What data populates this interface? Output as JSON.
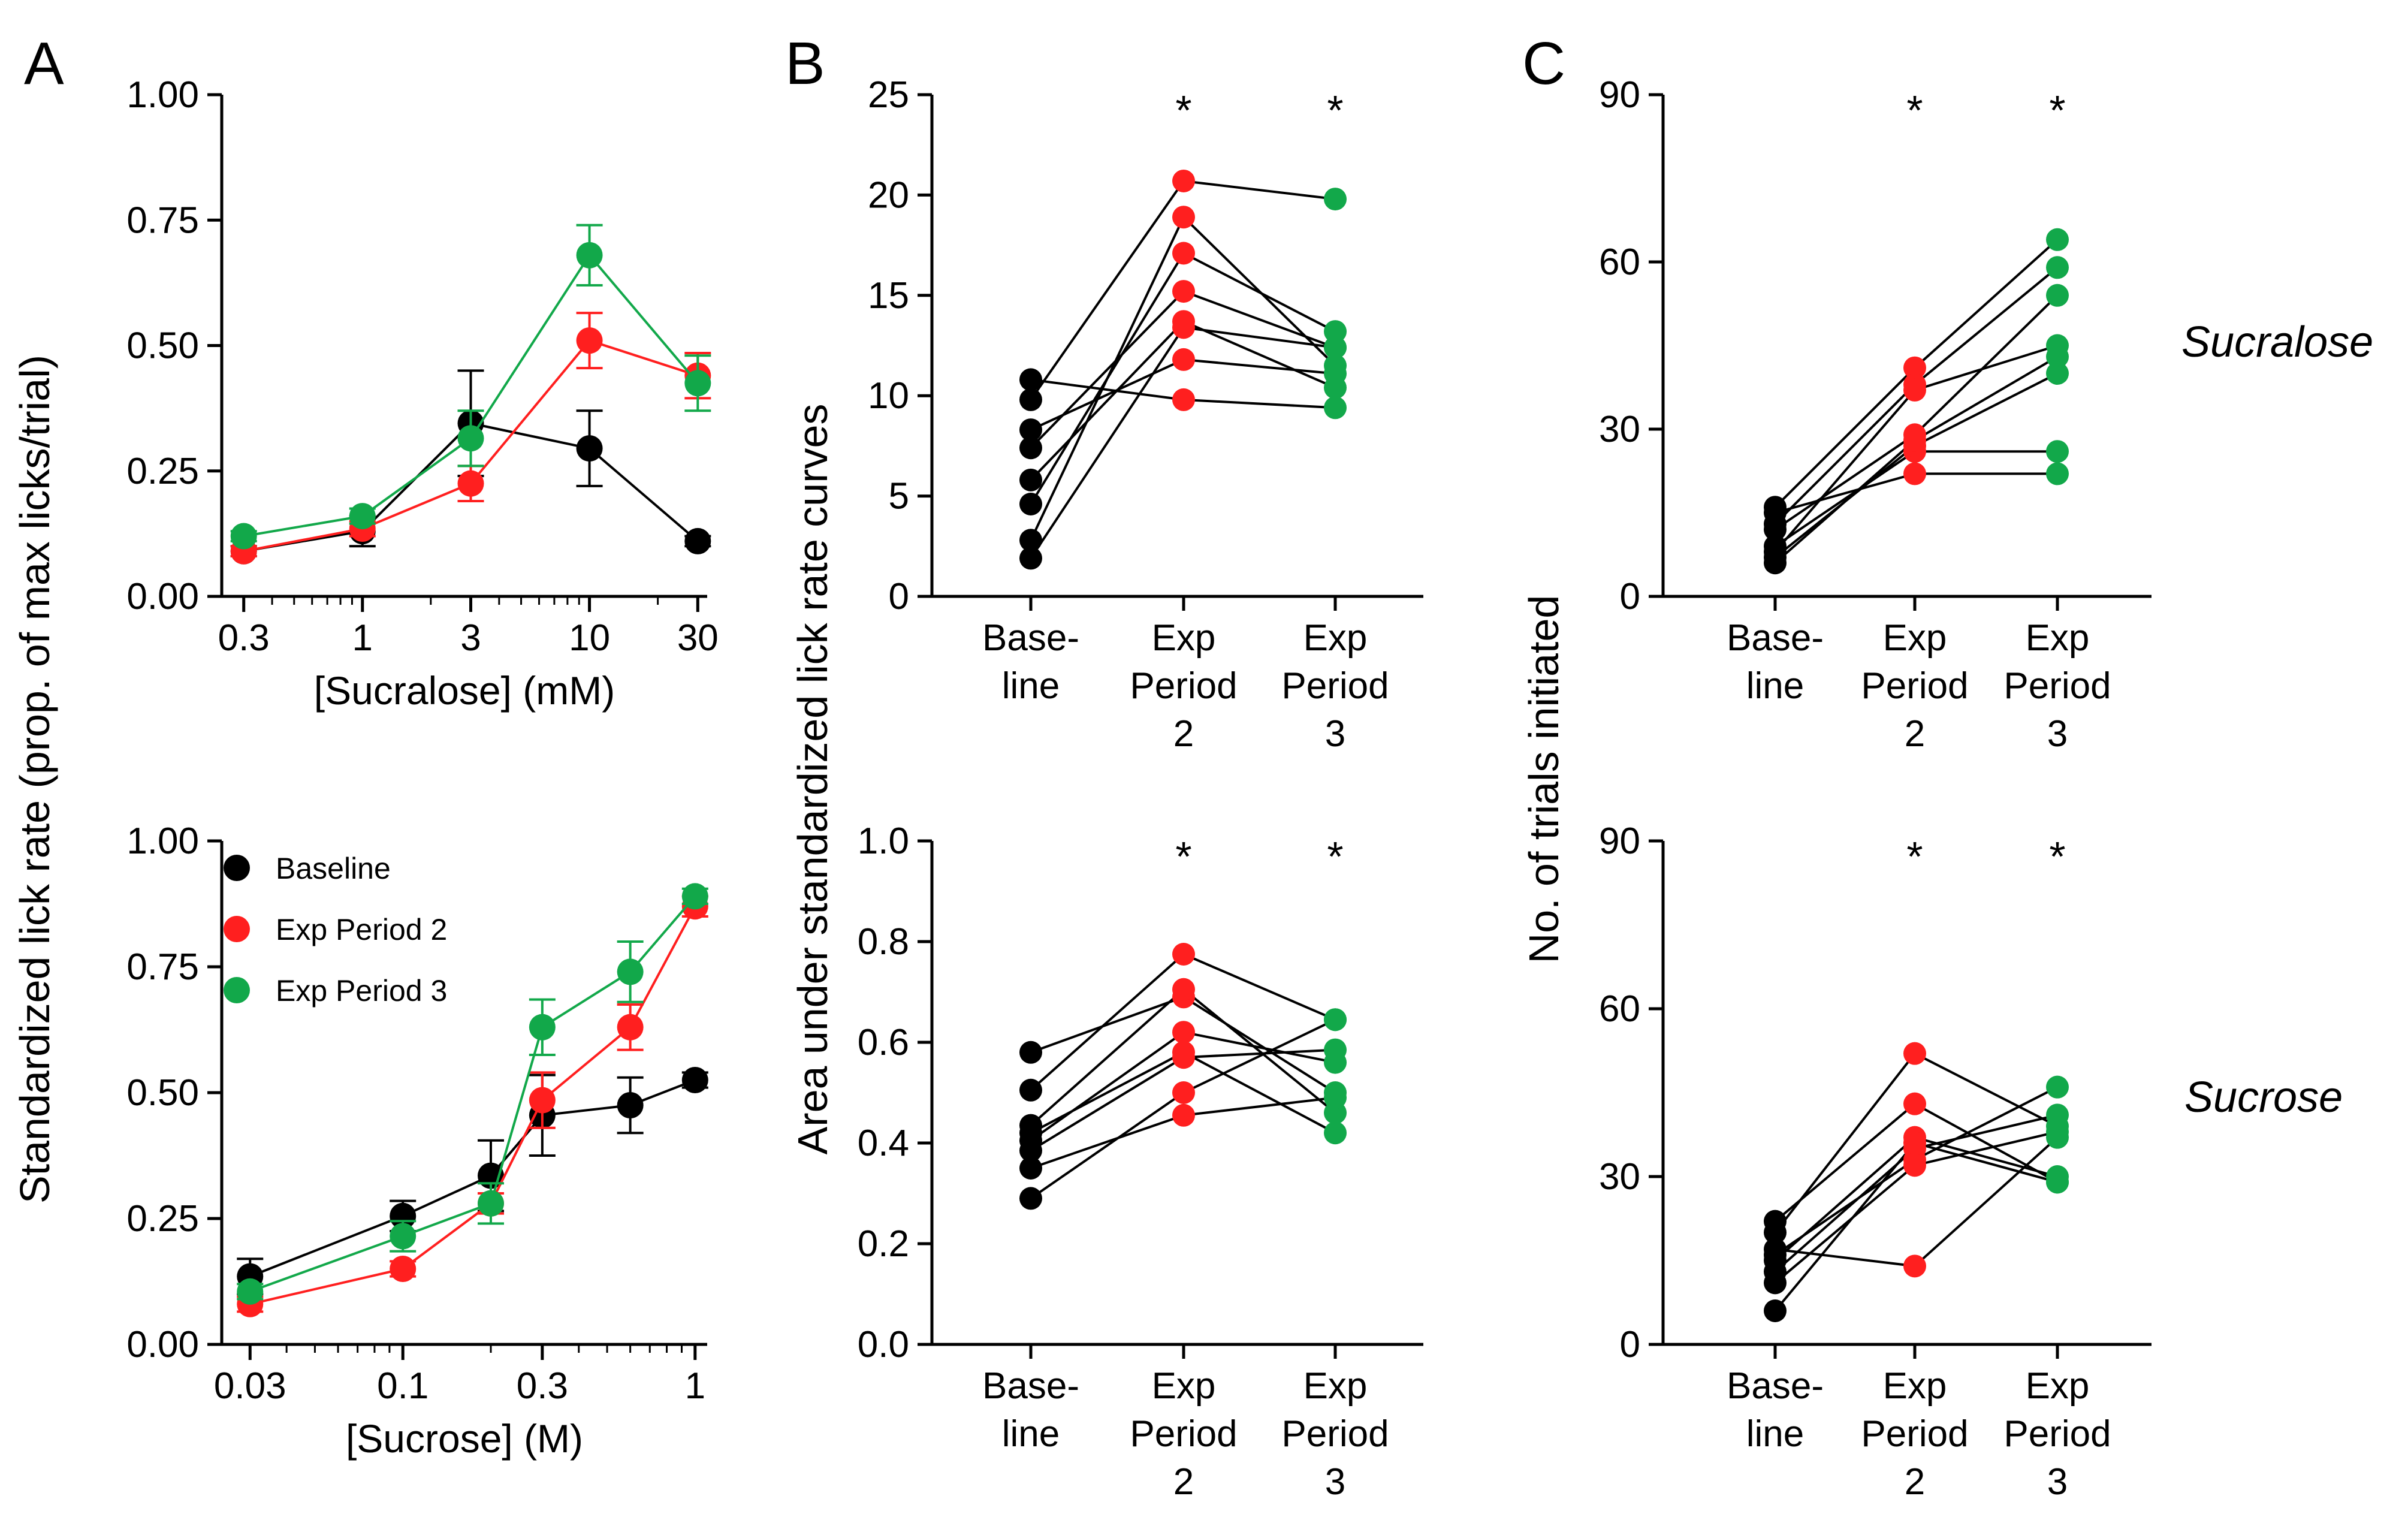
{
  "figure": {
    "panel_letters": [
      "A",
      "B",
      "C"
    ],
    "row_labels": [
      "Sucralose",
      "Sucrose"
    ]
  },
  "colors": {
    "baseline": "#000000",
    "exp2": "#ff1f1f",
    "exp3": "#12a84a"
  },
  "legend": [
    {
      "label": "Baseline",
      "color": "#000000"
    },
    {
      "label": "Exp Period 2",
      "color": "#ff1f1f"
    },
    {
      "label": "Exp Period 3",
      "color": "#12a84a"
    }
  ],
  "chart_data": [
    {
      "id": "A_top",
      "type": "line",
      "xscale": "log",
      "xlabel": "[Sucralose] (mM)",
      "ylabel": "Standardized lick rate (prop. of max licks/trial)",
      "ylim": [
        0,
        1
      ],
      "yticks": [
        0,
        0.25,
        0.5,
        0.75,
        1
      ],
      "ytick_labels": [
        "0.00",
        "0.25",
        "0.50",
        "0.75",
        "1.00"
      ],
      "xlim": [
        0.24,
        33
      ],
      "xticks": [
        0.3,
        1,
        3,
        10,
        30
      ],
      "xtick_labels": [
        "0.3",
        "1",
        "3",
        "10",
        "30"
      ],
      "x": [
        0.3,
        1,
        3,
        10,
        30
      ],
      "series": [
        {
          "name": "Baseline",
          "color": "#000000",
          "values": [
            0.09,
            0.13,
            0.345,
            0.295,
            0.11
          ],
          "err": [
            0.01,
            0.03,
            0.105,
            0.075,
            0.01
          ]
        },
        {
          "name": "Exp Period 2",
          "color": "#ff1f1f",
          "values": [
            0.09,
            0.135,
            0.225,
            0.51,
            0.44
          ],
          "err": [
            0.01,
            0.015,
            0.035,
            0.055,
            0.045
          ]
        },
        {
          "name": "Exp Period 3",
          "color": "#12a84a",
          "values": [
            0.12,
            0.16,
            0.315,
            0.68,
            0.425
          ],
          "err": [
            0.01,
            0.015,
            0.055,
            0.06,
            0.055
          ]
        }
      ]
    },
    {
      "id": "A_bottom",
      "type": "line",
      "xscale": "log",
      "xlabel": "[Sucrose] (M)",
      "ylabel": "",
      "ylim": [
        0,
        1
      ],
      "yticks": [
        0,
        0.25,
        0.5,
        0.75,
        1
      ],
      "ytick_labels": [
        "0.00",
        "0.25",
        "0.50",
        "0.75",
        "1.00"
      ],
      "xlim": [
        0.024,
        1.1
      ],
      "xticks": [
        0.03,
        0.1,
        0.3,
        1
      ],
      "xtick_labels": [
        "0.03",
        "0.1",
        "0.3",
        "1"
      ],
      "x": [
        0.03,
        0.1,
        0.2,
        0.3,
        0.6,
        1.0
      ],
      "series": [
        {
          "name": "Baseline",
          "color": "#000000",
          "values": [
            0.135,
            0.255,
            0.335,
            0.455,
            0.475,
            0.525
          ],
          "err": [
            0.035,
            0.03,
            0.07,
            0.08,
            0.055,
            0.015
          ]
        },
        {
          "name": "Exp Period 2",
          "color": "#ff1f1f",
          "values": [
            0.08,
            0.15,
            0.28,
            0.485,
            0.63,
            0.87
          ],
          "err": [
            0.015,
            0.015,
            0.02,
            0.055,
            0.045,
            0.02
          ]
        },
        {
          "name": "Exp Period 3",
          "color": "#12a84a",
          "values": [
            0.105,
            0.215,
            0.28,
            0.63,
            0.74,
            0.89
          ],
          "err": [
            0.015,
            0.03,
            0.04,
            0.055,
            0.06,
            0.015
          ]
        }
      ]
    },
    {
      "id": "B_top",
      "type": "scatter",
      "ylabel": "Area under standardized lick rate curves",
      "ylim": [
        0,
        25
      ],
      "yticks": [
        0,
        5,
        10,
        15,
        20,
        25
      ],
      "ytick_labels": [
        "0",
        "5",
        "10",
        "15",
        "20",
        "25"
      ],
      "categories": [
        "Base-\nline",
        "Exp\nPeriod\n2",
        "Exp\nPeriod\n3"
      ],
      "significance": [
        "",
        "*",
        "*"
      ],
      "subjects": [
        [
          10.8,
          9.8,
          9.4
        ],
        [
          9.8,
          20.7,
          19.8
        ],
        [
          8.3,
          11.8,
          11.1
        ],
        [
          7.4,
          15.2,
          12.4
        ],
        [
          5.8,
          13.7,
          10.4
        ],
        [
          4.6,
          17.1,
          13.2
        ],
        [
          2.8,
          18.9,
          11.5
        ],
        [
          1.9,
          13.4,
          12.4
        ]
      ]
    },
    {
      "id": "B_bottom",
      "type": "scatter",
      "ylabel": "",
      "ylim": [
        0,
        1
      ],
      "yticks": [
        0,
        0.2,
        0.4,
        0.6,
        0.8,
        1.0
      ],
      "ytick_labels": [
        "0.0",
        "0.2",
        "0.4",
        "0.6",
        "0.8",
        "1.0"
      ],
      "categories": [
        "Base-\nline",
        "Exp\nPeriod\n2",
        "Exp\nPeriod\n3"
      ],
      "significance": [
        "",
        "*",
        "*"
      ],
      "subjects": [
        [
          0.58,
          0.69,
          0.5
        ],
        [
          0.505,
          0.775,
          0.645
        ],
        [
          0.435,
          0.705,
          0.46
        ],
        [
          0.42,
          0.58,
          0.42
        ],
        [
          0.405,
          0.62,
          0.56
        ],
        [
          0.385,
          0.57,
          0.585
        ],
        [
          0.35,
          0.455,
          0.49
        ],
        [
          0.29,
          0.5,
          0.645
        ]
      ]
    },
    {
      "id": "C_top",
      "type": "scatter",
      "ylabel": "No. of trials initiated",
      "ylim": [
        0,
        90
      ],
      "yticks": [
        0,
        30,
        60,
        90
      ],
      "ytick_labels": [
        "0",
        "30",
        "60",
        "90"
      ],
      "categories": [
        "Base-\nline",
        "Exp\nPeriod\n2",
        "Exp\nPeriod\n3"
      ],
      "significance": [
        "",
        "*",
        "*"
      ],
      "subjects": [
        [
          16,
          41,
          64
        ],
        [
          15,
          22,
          22
        ],
        [
          13,
          38,
          59
        ],
        [
          12,
          29,
          54
        ],
        [
          9,
          26,
          26
        ],
        [
          8,
          37,
          45
        ],
        [
          7,
          27,
          40
        ],
        [
          6,
          28,
          43
        ]
      ]
    },
    {
      "id": "C_bottom",
      "type": "scatter",
      "ylabel": "",
      "ylim": [
        0,
        90
      ],
      "yticks": [
        0,
        30,
        60,
        90
      ],
      "ytick_labels": [
        "0",
        "30",
        "60",
        "90"
      ],
      "categories": [
        "Base-\nline",
        "Exp\nPeriod\n2",
        "Exp\nPeriod\n3"
      ],
      "significance": [
        "",
        "*",
        "*"
      ],
      "subjects": [
        [
          22,
          43,
          29
        ],
        [
          20,
          52,
          39
        ],
        [
          17,
          14,
          37
        ],
        [
          16,
          33,
          46
        ],
        [
          15,
          37,
          30
        ],
        [
          13,
          35,
          41
        ],
        [
          11,
          32,
          38
        ],
        [
          6,
          36,
          29
        ]
      ]
    }
  ]
}
